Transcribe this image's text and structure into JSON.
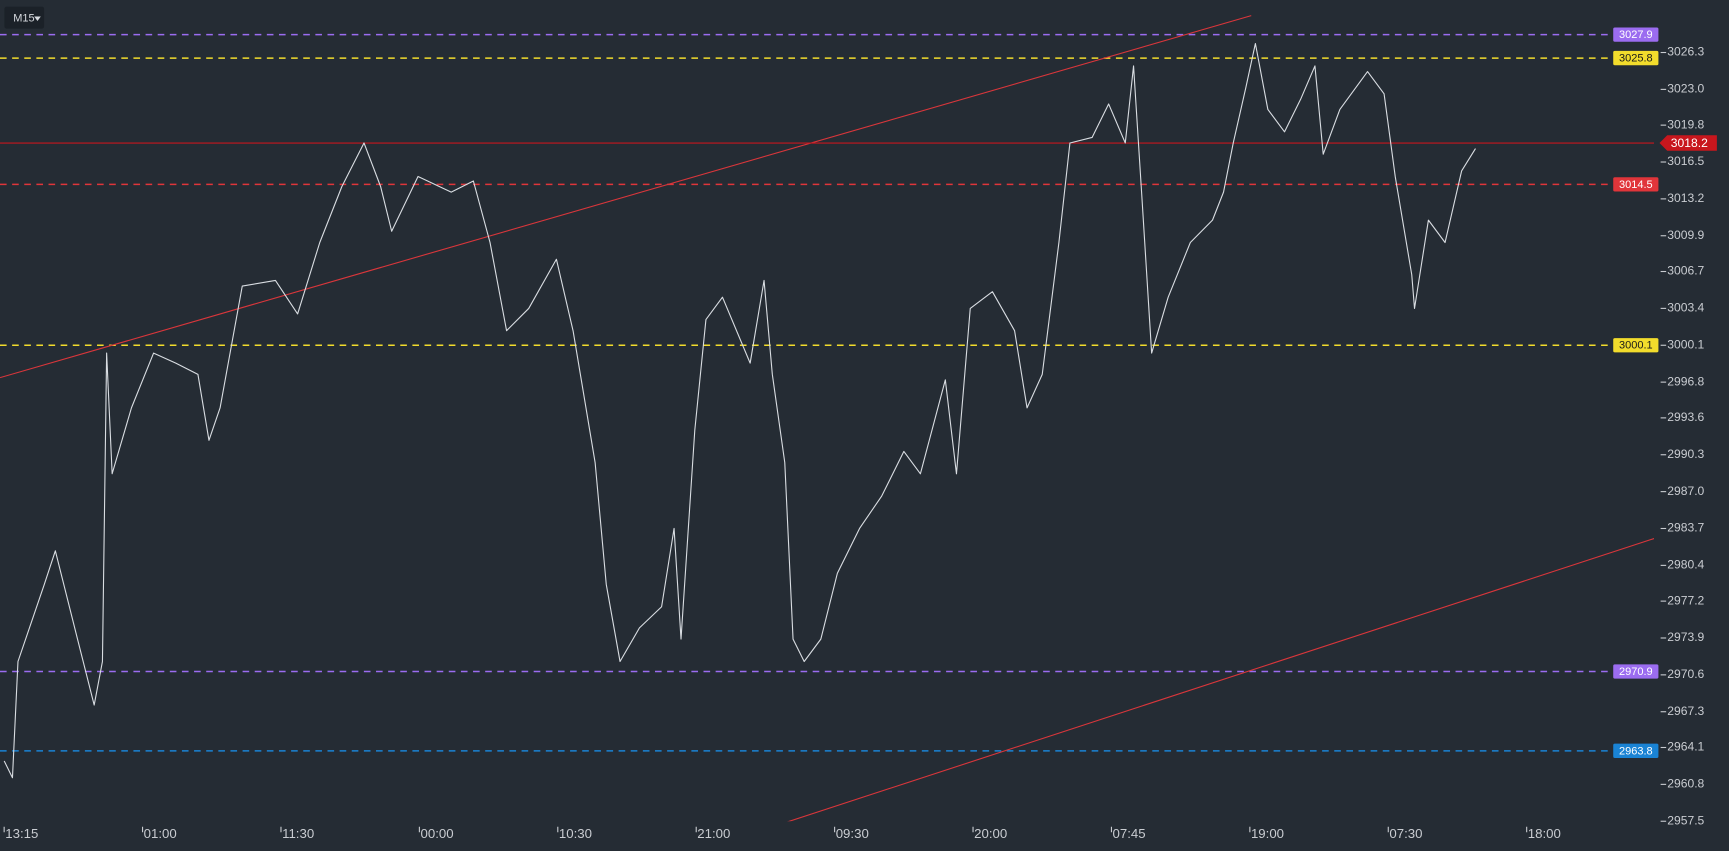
{
  "toolbar": {
    "timeframe": "M15"
  },
  "chart_data": {
    "type": "line",
    "background": "#252c34",
    "xlim": [
      -0.03,
      11.92
    ],
    "xticks": [
      {
        "value": 0,
        "label": "13:15"
      },
      {
        "value": 1,
        "label": "01:00"
      },
      {
        "value": 2,
        "label": "11:30"
      },
      {
        "value": 3,
        "label": "00:00"
      },
      {
        "value": 4,
        "label": "10:30"
      },
      {
        "value": 5,
        "label": "21:00"
      },
      {
        "value": 6,
        "label": "09:30"
      },
      {
        "value": 7,
        "label": "20:00"
      },
      {
        "value": 8,
        "label": "07:45"
      },
      {
        "value": 9,
        "label": "19:00"
      },
      {
        "value": 10,
        "label": "07:30"
      },
      {
        "value": 11,
        "label": "18:00"
      }
    ],
    "ylim": [
      2957.5,
      3031.0
    ],
    "yticks": [
      3026.3,
      {
        "value": 3023,
        "label": "3023.0"
      },
      3019.8,
      3016.5,
      3013.2,
      3009.9,
      3006.7,
      3003.4,
      3000.1,
      2996.8,
      2993.6,
      2990.3,
      {
        "value": 2987,
        "label": "2987.0"
      },
      2983.7,
      2980.4,
      2977.2,
      2973.9,
      2970.6,
      2967.3,
      2964.1,
      2960.8,
      2957.5
    ],
    "series": [
      {
        "color": "#d9dde2",
        "x": [
          0,
          0.06,
          0.1,
          0.29,
          0.37,
          0.53,
          0.65,
          0.71,
          0.74,
          0.78,
          0.92,
          1.08,
          1.24,
          1.4,
          1.48,
          1.56,
          1.72,
          1.96,
          2.12,
          2.28,
          2.44,
          2.6,
          2.72,
          2.8,
          2.99,
          3.23,
          3.39,
          3.51,
          3.63,
          3.79,
          3.99,
          4.11,
          4.27,
          4.35,
          4.45,
          4.59,
          4.75,
          4.84,
          4.89,
          4.99,
          5.07,
          5.19,
          5.39,
          5.49,
          5.55,
          5.64,
          5.7,
          5.78,
          5.9,
          6.02,
          6.18,
          6.34,
          6.5,
          6.62,
          6.8,
          6.88,
          6.98,
          7.14,
          7.3,
          7.39,
          7.5,
          7.62,
          7.7,
          7.86,
          7.98,
          8.1,
          8.16,
          8.22,
          8.29,
          8.41,
          8.57,
          8.73,
          8.81,
          8.88,
          8.97,
          9.04,
          9.13,
          9.25,
          9.37,
          9.47,
          9.53,
          9.65,
          9.85,
          9.97,
          10.05,
          10.17,
          10.19,
          10.29,
          10.41,
          10.53,
          10.63
        ],
        "values": [
          2962.9,
          2961.4,
          2971.8,
          2978.7,
          2981.7,
          2973.8,
          2967.9,
          2971.8,
          2999.4,
          2988.6,
          2994.5,
          2999.4,
          2998.5,
          2997.5,
          2991.6,
          2994.5,
          3005.4,
          3005.9,
          3002.9,
          3009.3,
          3014.3,
          3018.2,
          3014.3,
          3010.3,
          3015.2,
          3013.8,
          3014.8,
          3009.3,
          3001.4,
          3003.4,
          3007.8,
          3001.4,
          2989.6,
          2978.7,
          2971.8,
          2974.8,
          2976.7,
          2983.7,
          2973.8,
          2992.5,
          3002.4,
          3004.4,
          2998.5,
          3005.9,
          2997.5,
          2989.6,
          2973.8,
          2971.8,
          2973.8,
          2979.7,
          2983.7,
          2986.6,
          2990.6,
          2988.6,
          2997.0,
          2988.6,
          3003.4,
          3004.9,
          3001.4,
          2994.5,
          2997.5,
          3009.3,
          3018.2,
          3018.7,
          3021.7,
          3018.2,
          3025.1,
          3013.3,
          2999.4,
          3004.4,
          3009.3,
          3011.3,
          3013.8,
          3018.2,
          3023.1,
          3027.1,
          3021.2,
          3019.2,
          3022.2,
          3025.1,
          3017.2,
          3021.2,
          3024.6,
          3022.6,
          3015.2,
          3006.4,
          3003.4,
          3011.3,
          3009.3,
          3015.7,
          3017.7
        ]
      }
    ],
    "levels": [
      {
        "value": 3027.9,
        "color": "#9b6cf0"
      },
      {
        "value": 3025.8,
        "color": "#f2dc2c"
      },
      {
        "value": 3014.5,
        "color": "#e0353a"
      },
      {
        "value": 3000.1,
        "color": "#f2dc2c"
      },
      {
        "value": 2970.9,
        "color": "#9b6cf0"
      },
      {
        "value": 2963.8,
        "color": "#1a83d4"
      }
    ],
    "current_price": {
      "value": 3018.2,
      "color": "#c8161d"
    },
    "trendlines": [
      {
        "color": "#d9363b",
        "x": [
          -0.03,
          9.01
        ],
        "y": [
          2997.2,
          3029.6
        ]
      },
      {
        "color": "#d9363b",
        "x": [
          5.55,
          11.92
        ],
        "y": [
          2957.0,
          2982.8
        ]
      }
    ]
  }
}
